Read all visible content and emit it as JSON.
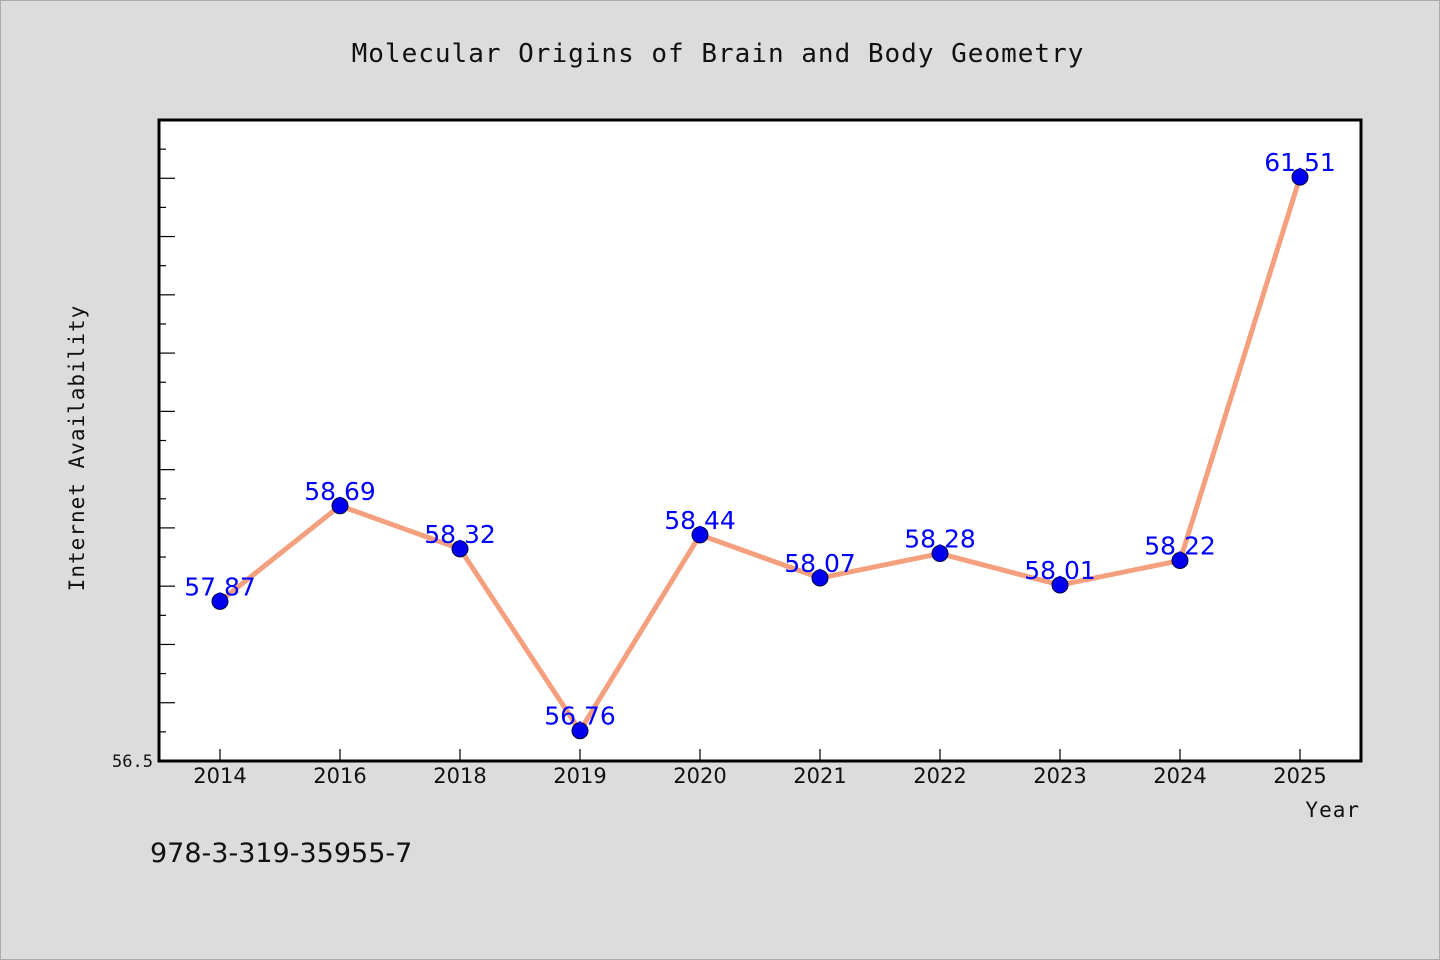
{
  "chart_data": {
    "type": "line",
    "title": "Molecular Origins of Brain and Body Geometry",
    "xlabel": "Year",
    "ylabel": "Internet Availability",
    "categories": [
      "2014",
      "2016",
      "2018",
      "2019",
      "2020",
      "2021",
      "2022",
      "2023",
      "2024",
      "2025"
    ],
    "series": [
      {
        "values": [
          57.87,
          58.69,
          58.32,
          56.76,
          58.44,
          58.07,
          58.28,
          58.01,
          58.22,
          61.51
        ],
        "line_color": "#f4a07e",
        "marker_color": "#0000ee"
      }
    ],
    "data_labels": [
      "57.87",
      "58.69",
      "58.32",
      "56.76",
      "58.44",
      "58.07",
      "58.28",
      "58.01",
      "58.22",
      "61.51"
    ],
    "y_tick_label": "56.5",
    "ylim": [
      56.5,
      62.0
    ],
    "grid": false,
    "legend": "none",
    "label_color": "#0000ff",
    "background_color": "#dcdcdc",
    "plot_background": "#ffffff"
  },
  "footer": {
    "isbn": "978-3-319-35955-7"
  }
}
